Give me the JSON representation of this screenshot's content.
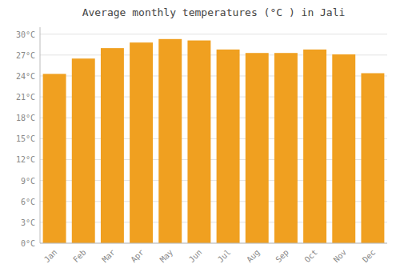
{
  "chart_data": {
    "type": "bar",
    "title": "Average monthly temperatures (°C ) in Jali",
    "categories": [
      "Jan",
      "Feb",
      "Mar",
      "Apr",
      "May",
      "Jun",
      "Jul",
      "Aug",
      "Sep",
      "Oct",
      "Nov",
      "Dec"
    ],
    "values": [
      24.3,
      26.5,
      28.0,
      28.8,
      29.3,
      29.1,
      27.8,
      27.3,
      27.3,
      27.8,
      27.1,
      24.4
    ],
    "color": "#F0A020",
    "ylim": [
      0,
      31
    ],
    "yticks": [
      {
        "value": 0,
        "label": "0°C"
      },
      {
        "value": 3,
        "label": "3°C"
      },
      {
        "value": 6,
        "label": "6°C"
      },
      {
        "value": 9,
        "label": "9°C"
      },
      {
        "value": 12,
        "label": "12°C"
      },
      {
        "value": 15,
        "label": "15°C"
      },
      {
        "value": 18,
        "label": "18°C"
      },
      {
        "value": 21,
        "label": "21°C"
      },
      {
        "value": 24,
        "label": "24°C"
      },
      {
        "value": 27,
        "label": "27°C"
      },
      {
        "value": 30,
        "label": "30°C"
      }
    ],
    "grid": true
  }
}
